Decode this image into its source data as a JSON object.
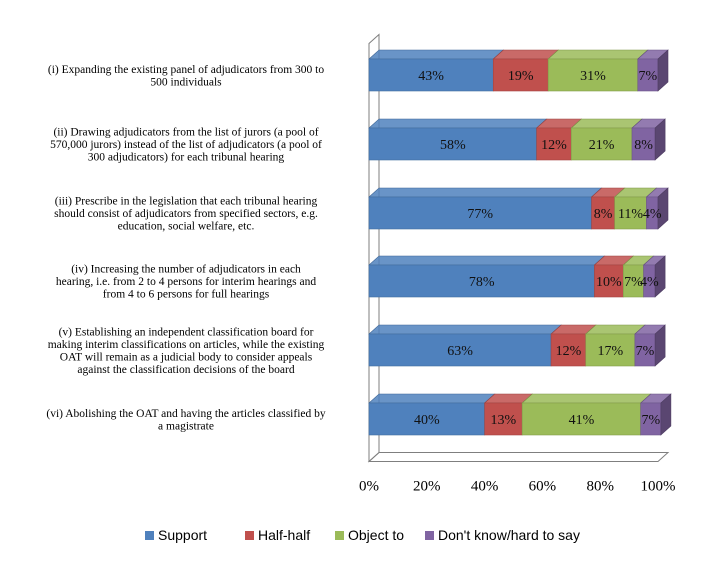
{
  "chart_data": {
    "type": "bar",
    "orientation": "horizontal",
    "stacked": "percent",
    "categories": [
      [
        "(i) Expanding the existing panel of adjudicators from 300 to",
        "500 individuals"
      ],
      [
        "(ii) Drawing adjudicators from the list of jurors (a pool of",
        "570,000 jurors) instead of the list of adjudicators (a pool of",
        "300 adjudicators) for each tribunal hearing"
      ],
      [
        "(iii) Prescribe in the legislation that each tribunal hearing",
        "should consist of adjudicators from specified sectors, e.g.",
        "education, social welfare, etc."
      ],
      [
        "(iv) Increasing the number of adjudicators in each",
        "hearing, i.e. from 2 to 4 persons for interim hearings and",
        "from 4 to 6 persons for full hearings"
      ],
      [
        "(v) Establishing an independent classification board for",
        "making interim classifications on articles, while the existing",
        "OAT will remain as a judicial body to consider appeals",
        "against the classification decisions of the board"
      ],
      [
        "(vi) Abolishing the OAT and having the articles classified by",
        "a magistrate"
      ]
    ],
    "series": [
      {
        "name": "Support",
        "color": "#4F81BD",
        "values": [
          43,
          58,
          77,
          78,
          63,
          40
        ],
        "labels": [
          "43%",
          "58%",
          "77%",
          "78%",
          "63%",
          "40%"
        ]
      },
      {
        "name": "Half-half",
        "color": "#C0504D",
        "values": [
          19,
          12,
          8,
          10,
          12,
          13
        ],
        "labels": [
          "19%",
          "12%",
          "8%",
          "10%",
          "12%",
          "13%"
        ]
      },
      {
        "name": "Object to",
        "color": "#9BBB59",
        "values": [
          31,
          21,
          11,
          7,
          17,
          41
        ],
        "labels": [
          "31%",
          "21%",
          "11%",
          "7%",
          "17%",
          "41%"
        ]
      },
      {
        "name": "Don't know/hard to say",
        "color": "#8064A2",
        "values": [
          7,
          8,
          4,
          4,
          7,
          7
        ],
        "labels": [
          "7%",
          "8%",
          "4%",
          "4%",
          "7%",
          "7%"
        ]
      }
    ],
    "x_ticks": [
      "0%",
      "20%",
      "40%",
      "60%",
      "80%",
      "100%"
    ],
    "xlim": [
      0,
      100
    ],
    "grid": false,
    "legend": "bottom",
    "style": "3d"
  }
}
